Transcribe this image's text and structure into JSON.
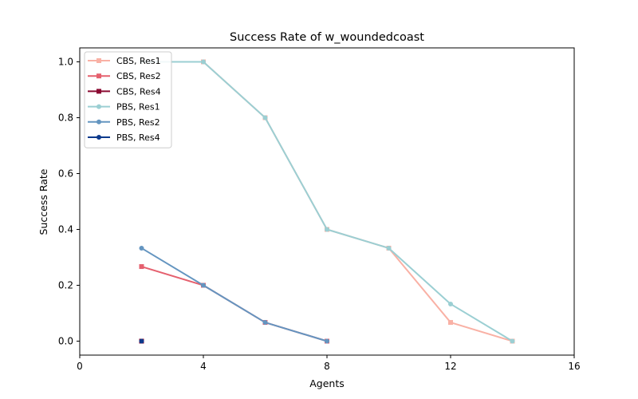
{
  "chart_data": {
    "type": "line",
    "title": "Success Rate of w_woundedcoast",
    "xlabel": "Agents",
    "ylabel": "Success Rate",
    "xlim": [
      0,
      16
    ],
    "ylim": [
      -0.05,
      1.05
    ],
    "xticks": [
      0,
      4,
      8,
      12,
      16
    ],
    "yticks": [
      0.0,
      0.2,
      0.4,
      0.6,
      0.8,
      1.0
    ],
    "xtick_labels": [
      "0",
      "4",
      "8",
      "12",
      "16"
    ],
    "ytick_labels": [
      "0.0",
      "0.2",
      "0.4",
      "0.6",
      "0.8",
      "1.0"
    ],
    "grid": false,
    "legend_position": "upper-left",
    "series": [
      {
        "name": "CBS, Res1",
        "color": "#f9b1a5",
        "marker": "square",
        "x": [
          2,
          4,
          6,
          8,
          10,
          12,
          14
        ],
        "y": [
          1.0,
          1.0,
          0.8,
          0.4,
          0.333,
          0.067,
          0.0
        ]
      },
      {
        "name": "CBS, Res2",
        "color": "#e5606e",
        "marker": "square",
        "x": [
          2,
          4,
          6,
          8
        ],
        "y": [
          0.267,
          0.2,
          0.067,
          0.0
        ]
      },
      {
        "name": "CBS, Res4",
        "color": "#8b0a32",
        "marker": "square",
        "x": [
          2
        ],
        "y": [
          0.0
        ]
      },
      {
        "name": "PBS, Res1",
        "color": "#9bcfd3",
        "marker": "circle",
        "x": [
          2,
          4,
          6,
          8,
          10,
          12,
          14
        ],
        "y": [
          1.0,
          1.0,
          0.8,
          0.4,
          0.333,
          0.133,
          0.0
        ]
      },
      {
        "name": "PBS, Res2",
        "color": "#6495c0",
        "marker": "circle",
        "x": [
          2,
          4,
          6,
          8
        ],
        "y": [
          0.333,
          0.2,
          0.067,
          0.0
        ]
      },
      {
        "name": "PBS, Res4",
        "color": "#0d3a8c",
        "marker": "circle",
        "x": [
          2
        ],
        "y": [
          0.0
        ]
      }
    ]
  }
}
